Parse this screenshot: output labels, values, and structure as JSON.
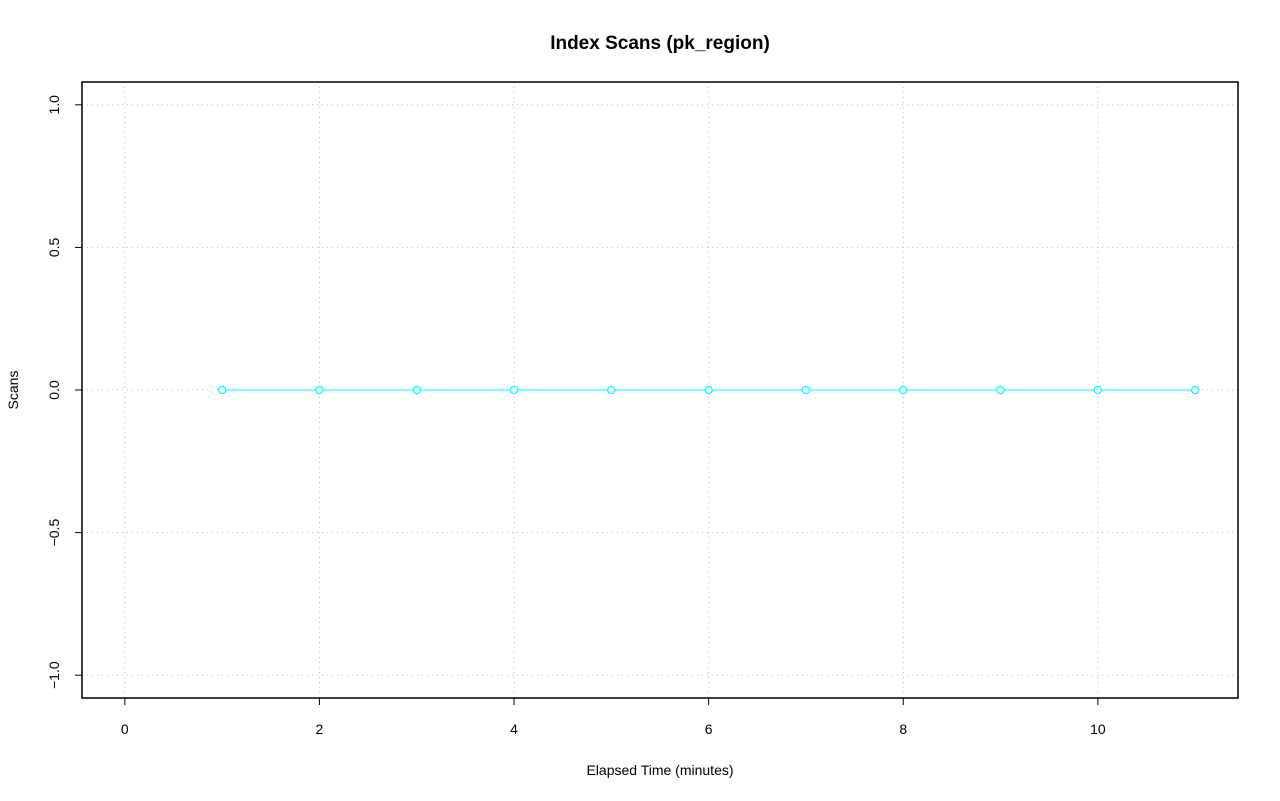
{
  "chart_data": {
    "type": "line",
    "title": "Index Scans (pk_region)",
    "x_label": "Elapsed Time (minutes)",
    "y_label": "Scans",
    "x": [
      1,
      2,
      3,
      4,
      5,
      6,
      7,
      8,
      9,
      10,
      11
    ],
    "series": [
      {
        "color": "#00ffff",
        "values": [
          0,
          0,
          0,
          0,
          0,
          0,
          0,
          0,
          0,
          0,
          0
        ]
      }
    ],
    "xlim": [
      -0.44,
      11.44
    ],
    "ylim": [
      -1.08,
      1.08
    ],
    "xticks": [
      0,
      2,
      4,
      6,
      8,
      10
    ],
    "yticks": [
      {
        "value": -1,
        "label": "−1.0"
      },
      {
        "value": -0.5,
        "label": "−0.5"
      },
      {
        "value": 0,
        "label": "0.0"
      },
      {
        "value": 0.5,
        "label": "0.5"
      },
      {
        "value": 1,
        "label": "1.0"
      }
    ],
    "grid": true
  }
}
